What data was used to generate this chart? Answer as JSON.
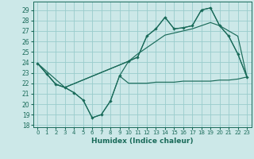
{
  "background_color": "#cce8e8",
  "grid_color": "#99cccc",
  "line_color": "#1a6b5a",
  "xlabel": "Humidex (Indice chaleur)",
  "xlim": [
    -0.5,
    23.5
  ],
  "ylim": [
    17.8,
    29.8
  ],
  "xticks": [
    0,
    1,
    2,
    3,
    4,
    5,
    6,
    7,
    8,
    9,
    10,
    11,
    12,
    13,
    14,
    15,
    16,
    17,
    18,
    19,
    20,
    21,
    22,
    23
  ],
  "yticks": [
    18,
    19,
    20,
    21,
    22,
    23,
    24,
    25,
    26,
    27,
    28,
    29
  ],
  "line_zigzag_x": [
    0,
    1,
    2,
    3,
    4,
    5,
    6,
    7,
    8,
    9,
    10,
    11,
    12,
    13,
    14,
    15,
    16,
    17,
    18,
    19,
    20,
    21,
    22,
    23
  ],
  "line_zigzag_y": [
    23.9,
    22.9,
    21.9,
    21.6,
    21.1,
    20.4,
    18.7,
    19.0,
    20.3,
    22.7,
    22.0,
    22.0,
    22.0,
    22.1,
    22.1,
    22.1,
    22.2,
    22.2,
    22.2,
    22.2,
    22.3,
    22.3,
    22.4,
    22.6
  ],
  "line_main_x": [
    0,
    1,
    2,
    3,
    4,
    5,
    6,
    7,
    8,
    9,
    10,
    11,
    12,
    13,
    14,
    15,
    16,
    17,
    18,
    19,
    20,
    21,
    22,
    23
  ],
  "line_main_y": [
    23.9,
    22.9,
    21.9,
    21.6,
    21.1,
    20.4,
    18.7,
    19.0,
    20.3,
    22.7,
    24.1,
    24.5,
    26.5,
    27.2,
    28.3,
    27.2,
    27.3,
    27.5,
    29.0,
    29.2,
    27.5,
    26.5,
    24.8,
    22.6
  ],
  "line_trend1_x": [
    0,
    1,
    2,
    3,
    10,
    11,
    12,
    13,
    14,
    15,
    16,
    17,
    18,
    19,
    20,
    21,
    22,
    23
  ],
  "line_trend1_y": [
    23.9,
    22.9,
    21.9,
    21.6,
    24.1,
    24.5,
    26.5,
    27.2,
    28.3,
    27.2,
    27.3,
    27.5,
    29.0,
    29.2,
    27.5,
    26.5,
    24.8,
    22.6
  ],
  "line_trend2_x": [
    0,
    3,
    10,
    11,
    12,
    13,
    14,
    15,
    16,
    17,
    18,
    19,
    20,
    21,
    22,
    23
  ],
  "line_trend2_y": [
    23.9,
    21.6,
    24.1,
    24.8,
    25.4,
    26.0,
    26.6,
    26.8,
    27.0,
    27.2,
    27.5,
    27.8,
    27.5,
    27.0,
    26.5,
    22.6
  ]
}
